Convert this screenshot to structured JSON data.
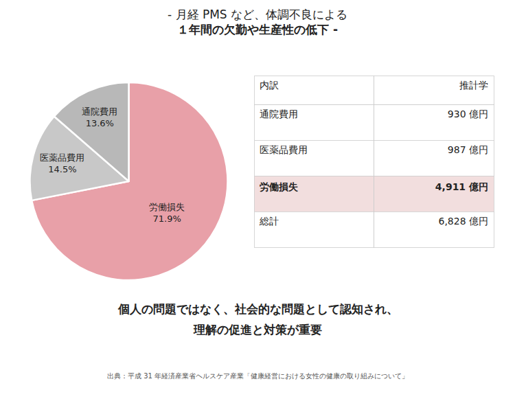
{
  "chart_data": {
    "type": "pie",
    "title": "- 月経 PMS など、体調不良による\n１年間の欠勤や生産性の低下 -",
    "categories": [
      "労働損失",
      "医薬品費用",
      "通院費用"
    ],
    "values": [
      71.9,
      14.5,
      13.6
    ],
    "value_labels": [
      "71.9%",
      "14.5%",
      "13.6%"
    ],
    "colors": [
      "#e8a0a8",
      "#c8c8c8",
      "#b8b8b8"
    ],
    "data_labels": true,
    "table": {
      "header": [
        "内訳",
        "推計学"
      ],
      "rows": [
        [
          "通院費用",
          "930 億円"
        ],
        [
          "医薬品費用",
          "987 億円"
        ],
        [
          "労働損失",
          "4,911 億円"
        ],
        [
          "総計",
          "6,828 億円"
        ]
      ],
      "highlight_row": 2,
      "highlight_color": "#f2dede"
    },
    "annotations": [
      "個人の問題ではなく、社会的な問題として認知され、",
      "理解の促進と対策が重要"
    ],
    "source": "出典：平成 31 年経済産業省ヘルスケア産業「健康経営における女性の健康の取り組みについて」"
  }
}
